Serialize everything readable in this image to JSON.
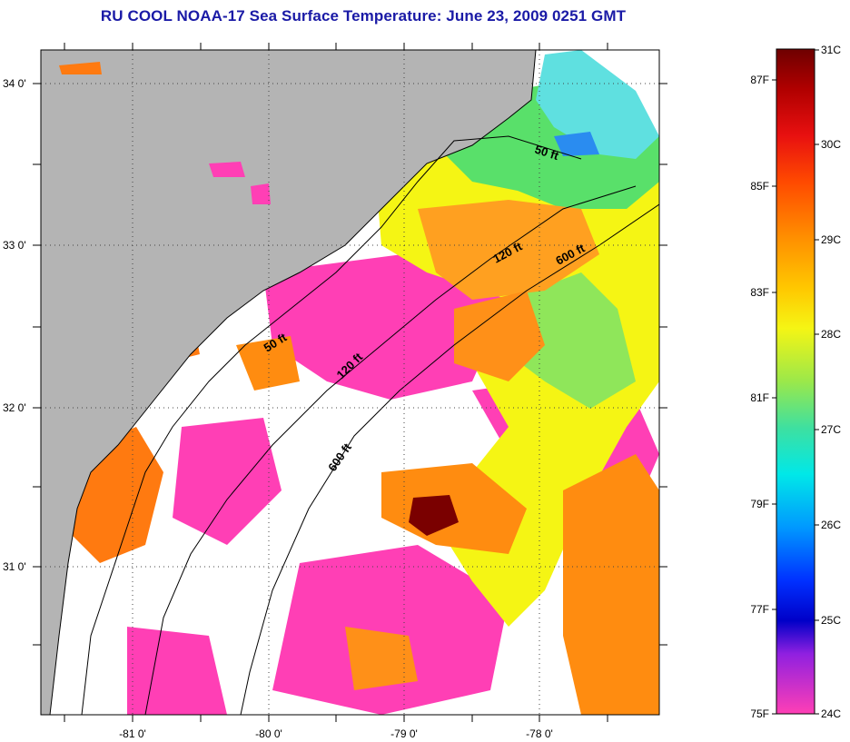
{
  "title": "RU COOL  NOAA-17  Sea Surface Temperature:  June 23, 2009 0251 GMT",
  "map": {
    "lat_ticks": [
      "34 0'",
      "33 0'",
      "32 0'",
      "31 0'"
    ],
    "lon_ticks": [
      "-81 0'",
      "-80 0'",
      "-79 0'",
      "-78 0'"
    ],
    "contour_labels": [
      {
        "text": "50 ft"
      },
      {
        "text": "120 ft"
      },
      {
        "text": "600 ft"
      },
      {
        "text": "50 ft"
      },
      {
        "text": "120 ft"
      },
      {
        "text": "600 ft"
      }
    ],
    "colors": {
      "land": "#b4b4b4",
      "cloud": "#ffffff",
      "cold": "#ff3fb5",
      "warm": "#ff7a10",
      "mid": "#f5f514",
      "cool": "#59e06a"
    }
  },
  "colorbar": {
    "celsius": [
      "31C",
      "30C",
      "29C",
      "28C",
      "27C",
      "26C",
      "25C",
      "24C"
    ],
    "fahrenheit": [
      "87F",
      "85F",
      "83F",
      "81F",
      "79F",
      "77F",
      "75F"
    ]
  }
}
